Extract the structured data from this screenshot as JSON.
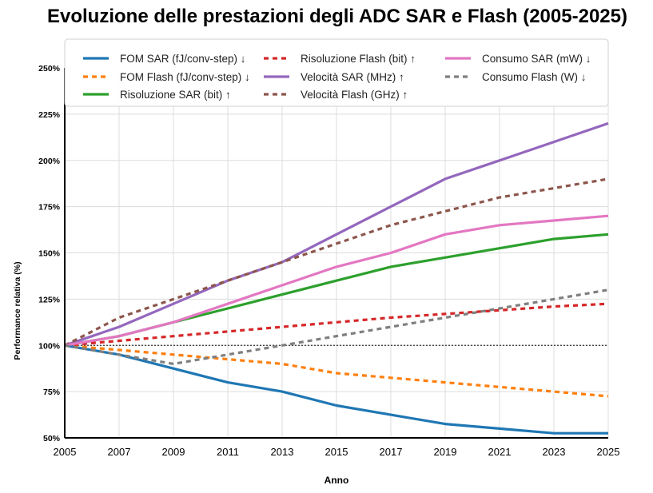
{
  "chart_data": {
    "type": "line",
    "title": "Evoluzione delle prestazioni degli ADC SAR e Flash (2005-2025)",
    "xlabel": "Anno",
    "ylabel": "Performance relativa (%)",
    "x": [
      2005,
      2007,
      2009,
      2011,
      2013,
      2015,
      2017,
      2019,
      2021,
      2023,
      2025
    ],
    "xticks": [
      "2005",
      "2007",
      "2009",
      "2011",
      "2013",
      "2015",
      "2017",
      "2019",
      "2021",
      "2023",
      "2025"
    ],
    "xlim": [
      2005,
      2025
    ],
    "ylim": [
      50,
      250
    ],
    "yticks": [
      50,
      75,
      100,
      125,
      150,
      175,
      200,
      225,
      250
    ],
    "ytick_labels": [
      "50%",
      "75%",
      "100%",
      "125%",
      "150%",
      "175%",
      "200%",
      "225%",
      "250%"
    ],
    "reference_line": 100,
    "grid": true,
    "legend_position": "top",
    "series": [
      {
        "name": "FOM SAR (fJ/conv-step) ↓",
        "color": "#1f77b4",
        "style": "solid",
        "values": [
          100,
          95,
          87.5,
          80,
          75,
          67.5,
          62.5,
          57.5,
          55,
          52.5,
          52.5
        ]
      },
      {
        "name": "FOM Flash (fJ/conv-step) ↓",
        "color": "#ff7f0e",
        "style": "dotted",
        "values": [
          100,
          97.5,
          95,
          92.5,
          90,
          85,
          82.5,
          80,
          77.5,
          75,
          72.5
        ]
      },
      {
        "name": "Risoluzione SAR (bit) ↑",
        "color": "#2ca02c",
        "style": "solid",
        "values": [
          100,
          105,
          112.5,
          120,
          127.5,
          135,
          142.5,
          147.5,
          152.5,
          157.5,
          160
        ]
      },
      {
        "name": "Risoluzione Flash (bit) ↑",
        "color": "#d62728",
        "style": "dotted",
        "values": [
          100,
          102.5,
          105,
          107.5,
          110,
          112.5,
          115,
          117,
          119,
          121,
          122.5
        ]
      },
      {
        "name": "Velocità SAR (MHz) ↑",
        "color": "#9467bd",
        "style": "solid",
        "values": [
          100,
          110,
          122.5,
          135,
          145,
          160,
          175,
          190,
          200,
          210,
          220
        ]
      },
      {
        "name": "Velocità Flash (GHz) ↑",
        "color": "#8c564b",
        "style": "dotted",
        "values": [
          100,
          115,
          125,
          135,
          145,
          155,
          165,
          172.5,
          180,
          185,
          190
        ]
      },
      {
        "name": "Consumo SAR (mW) ↓",
        "color": "#e377c2",
        "style": "solid",
        "values": [
          100,
          105,
          112.5,
          122.5,
          132.5,
          142.5,
          150,
          160,
          165,
          167.5,
          170
        ]
      },
      {
        "name": "Consumo Flash (W) ↓",
        "color": "#7f7f7f",
        "style": "dotted",
        "values": [
          100,
          95,
          90,
          95,
          100,
          105,
          110,
          115,
          120,
          125,
          130
        ]
      }
    ]
  }
}
